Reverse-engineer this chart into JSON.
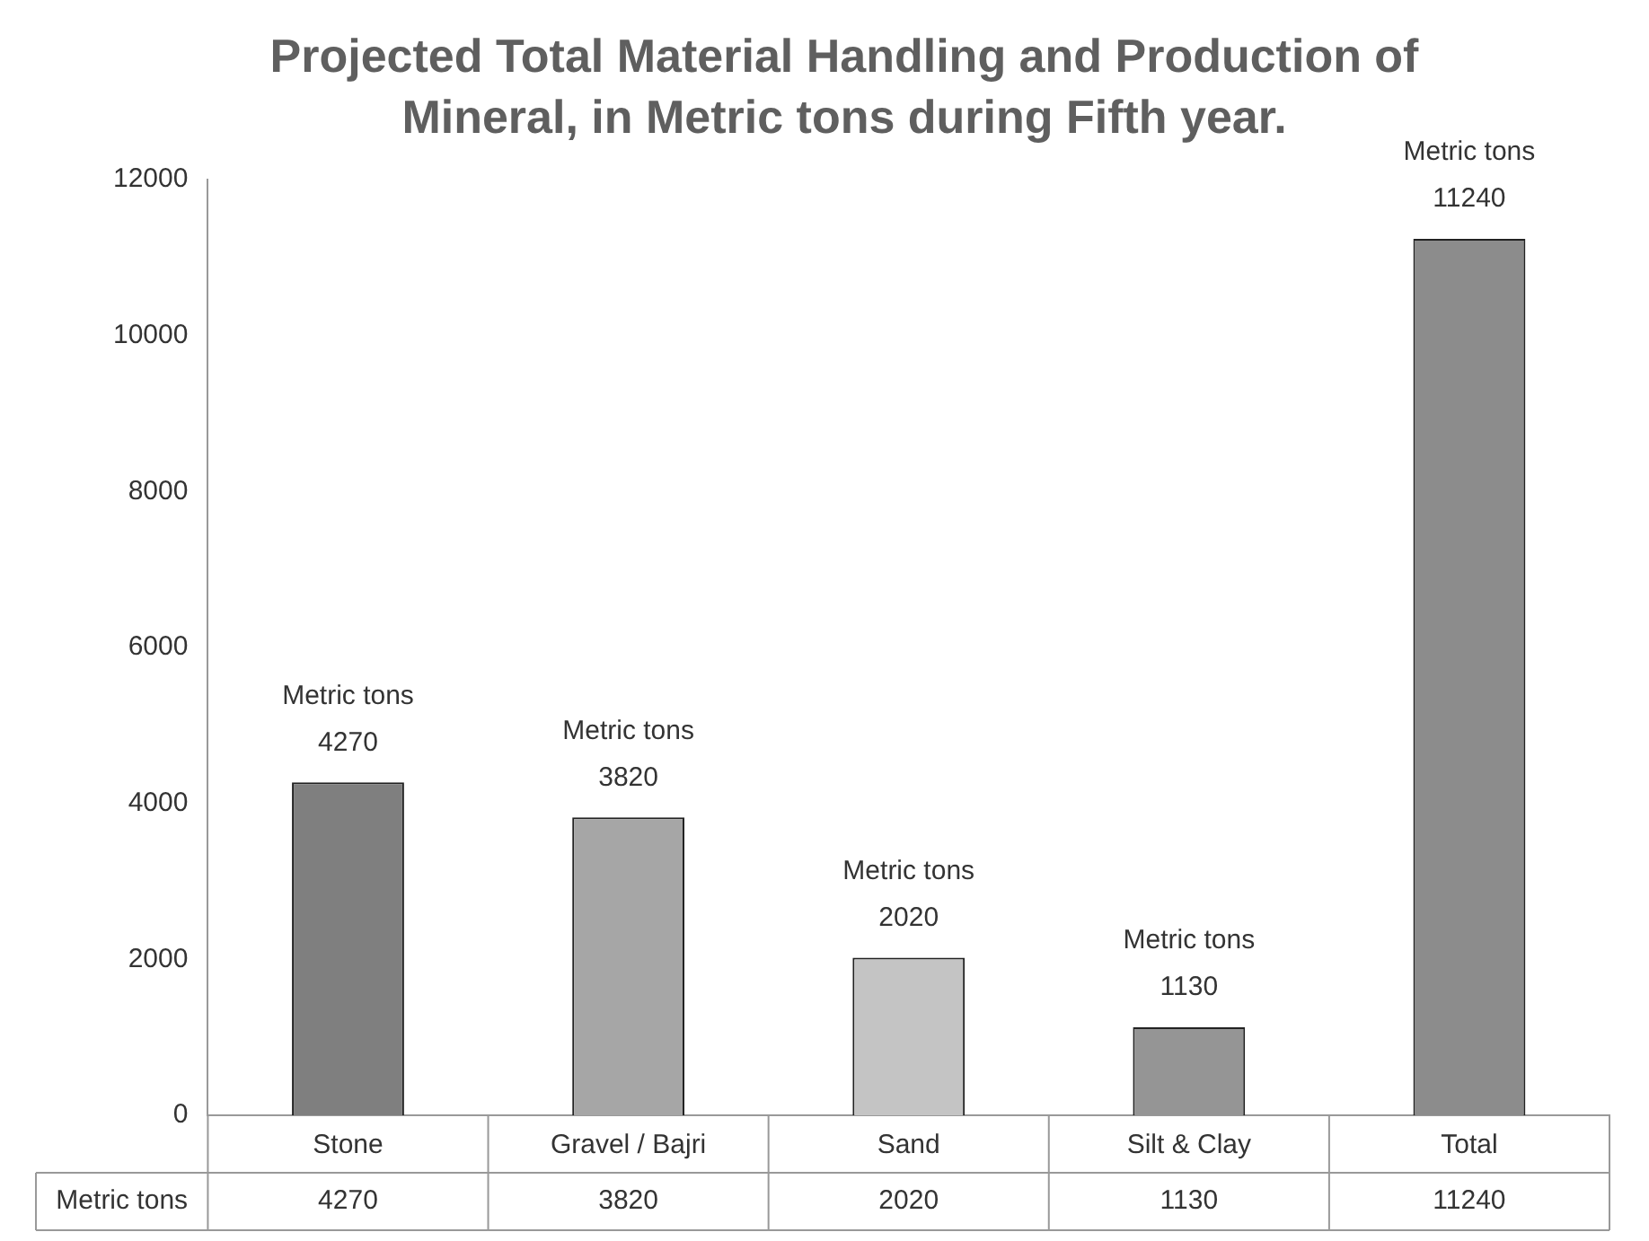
{
  "chart_data": {
    "type": "bar",
    "title": "Projected Total Material Handling and Production of Mineral, in Metric tons during Fifth  year.",
    "categories": [
      "Stone",
      "Gravel / Bajri",
      "Sand",
      "Silt & Clay",
      "Total"
    ],
    "series": [
      {
        "name": "Metric tons",
        "values": [
          4270,
          3820,
          2020,
          1130,
          11240
        ],
        "colors": [
          "#7f7f7f",
          "#a6a6a6",
          "#c4c4c4",
          "#959595",
          "#8c8c8c"
        ]
      }
    ],
    "ylim": [
      0,
      12000
    ],
    "yticks": [
      0,
      2000,
      4000,
      6000,
      8000,
      10000,
      12000
    ],
    "grid": false,
    "legend": "bottom left",
    "data_labels": true,
    "annotations": [
      {
        "text": "Metric tons\n4270",
        "x": "Stone",
        "y": 4270
      },
      {
        "text": "Metric tons\n3820",
        "x": "Gravel / Bajri",
        "y": 3820
      },
      {
        "text": "Metric tons\n2020",
        "x": "Sand",
        "y": 2020
      },
      {
        "text": "Metric tons\n1130",
        "x": "Silt & Clay",
        "y": 1130
      },
      {
        "text": "Metric tons\n11240",
        "x": "Total",
        "y": 11240
      }
    ]
  }
}
